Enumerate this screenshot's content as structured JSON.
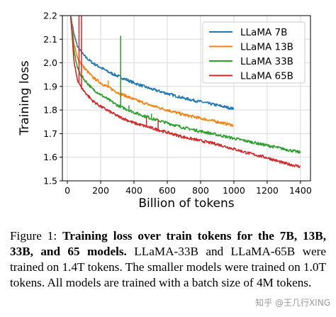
{
  "chart_data": {
    "type": "line",
    "xlabel": "Billion of tokens",
    "ylabel": "Training loss",
    "xlim": [
      -30,
      1460
    ],
    "ylim": [
      1.5,
      2.2
    ],
    "xticks": [
      0,
      200,
      400,
      600,
      800,
      1000,
      1200,
      1400
    ],
    "yticks": [
      1.5,
      1.6,
      1.7,
      1.8,
      1.9,
      2.0,
      2.1,
      2.2
    ],
    "ytick_labels": [
      "1.5",
      "1.6",
      "1.7",
      "1.8",
      "1.9",
      "2.0",
      "2.1",
      "2.2"
    ],
    "grid": true,
    "legend_position": "top-right",
    "series": [
      {
        "name": "LLaMA 7B",
        "color": "#1f77b4",
        "x": [
          20,
          40,
          60,
          80,
          100,
          150,
          200,
          250,
          300,
          400,
          500,
          600,
          700,
          800,
          900,
          1000
        ],
        "y": [
          2.2,
          2.12,
          2.07,
          2.05,
          2.03,
          2.0,
          1.98,
          1.96,
          1.945,
          1.915,
          1.89,
          1.87,
          1.85,
          1.835,
          1.82,
          1.805
        ]
      },
      {
        "name": "LLaMA 13B",
        "color": "#ff7f0e",
        "x": [
          20,
          40,
          60,
          80,
          100,
          150,
          200,
          250,
          300,
          400,
          500,
          600,
          700,
          800,
          900,
          1000
        ],
        "y": [
          2.2,
          2.08,
          2.02,
          2.0,
          1.98,
          1.94,
          1.915,
          1.895,
          1.875,
          1.845,
          1.82,
          1.8,
          1.78,
          1.765,
          1.75,
          1.735
        ]
      },
      {
        "name": "LLaMA 33B",
        "color": "#2ca02c",
        "x": [
          20,
          40,
          60,
          80,
          100,
          150,
          200,
          300,
          400,
          500,
          600,
          700,
          800,
          900,
          1000,
          1100,
          1200,
          1300,
          1400
        ],
        "y": [
          2.2,
          2.05,
          1.98,
          1.95,
          1.93,
          1.89,
          1.865,
          1.82,
          1.79,
          1.765,
          1.745,
          1.725,
          1.71,
          1.695,
          1.68,
          1.665,
          1.65,
          1.635,
          1.62
        ]
      },
      {
        "name": "LLaMA 65B",
        "color": "#d62728",
        "x": [
          20,
          40,
          60,
          80,
          100,
          150,
          200,
          300,
          400,
          500,
          600,
          700,
          800,
          900,
          1000,
          1100,
          1200,
          1300,
          1400
        ],
        "y": [
          2.2,
          2.0,
          1.93,
          1.9,
          1.88,
          1.84,
          1.815,
          1.775,
          1.745,
          1.725,
          1.705,
          1.685,
          1.67,
          1.655,
          1.635,
          1.615,
          1.598,
          1.575,
          1.56
        ]
      }
    ],
    "spikes": [
      {
        "series": "LLaMA 65B",
        "x": 70,
        "y": 2.2
      },
      {
        "series": "LLaMA 65B",
        "x": 85,
        "y": 2.2
      },
      {
        "series": "LLaMA 65B",
        "x": 875,
        "y": 1.665
      },
      {
        "series": "LLaMA 33B",
        "x": 320,
        "y": 2.115
      },
      {
        "series": "LLaMA 33B",
        "x": 370,
        "y": 1.82
      },
      {
        "series": "LLaMA 33B",
        "x": 480,
        "y": 1.78
      },
      {
        "series": "LLaMA 33B",
        "x": 505,
        "y": 1.785
      },
      {
        "series": "LLaMA 13B",
        "x": 245,
        "y": 1.925
      },
      {
        "series": "LLaMA 65B",
        "x": 475,
        "y": 1.77
      },
      {
        "series": "LLaMA 65B",
        "x": 545,
        "y": 1.76
      }
    ]
  },
  "caption": {
    "prefix": "Figure 1: ",
    "bold": "Training loss over train tokens for the 7B, 13B, 33B, and 65 models.",
    "rest": " LLaMA-33B and LLaMA-65B were trained on 1.4T tokens. The smaller models were trained on 1.0T tokens.  All models are trained with a batch size of 4M tokens."
  },
  "watermark": "知乎 @王几行XING"
}
